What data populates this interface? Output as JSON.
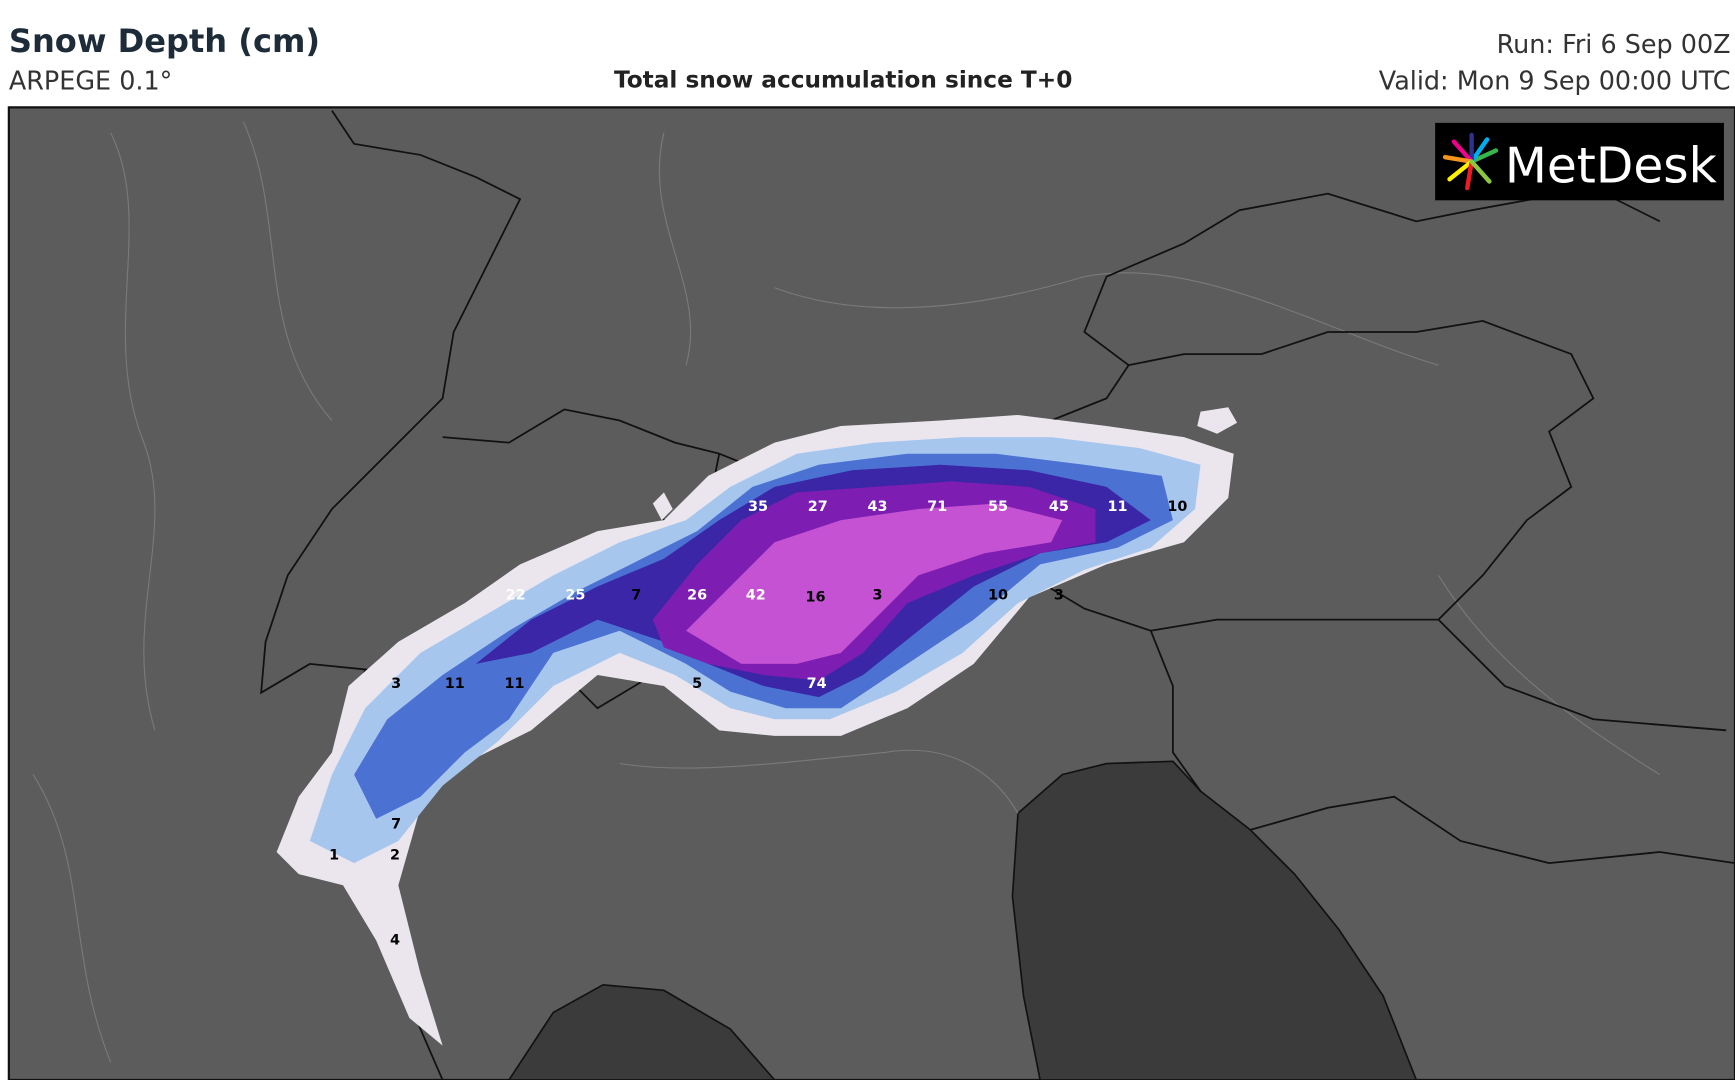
{
  "header": {
    "title": "Snow Depth (cm)",
    "model": "ARPEGE 0.1°",
    "description": "Total snow accumulation since T+0",
    "run": "Run: Fri 6 Sep 00Z",
    "valid": "Valid: Mon 9 Sep 00:00 UTC"
  },
  "logo": {
    "text": "MetDesk"
  },
  "map": {
    "labels": [
      35,
      27,
      43,
      71,
      55,
      45,
      11,
      10,
      22,
      25,
      7,
      26,
      42,
      16,
      3,
      10,
      3,
      3,
      11,
      11,
      5,
      74,
      7,
      1,
      2,
      4
    ]
  }
}
